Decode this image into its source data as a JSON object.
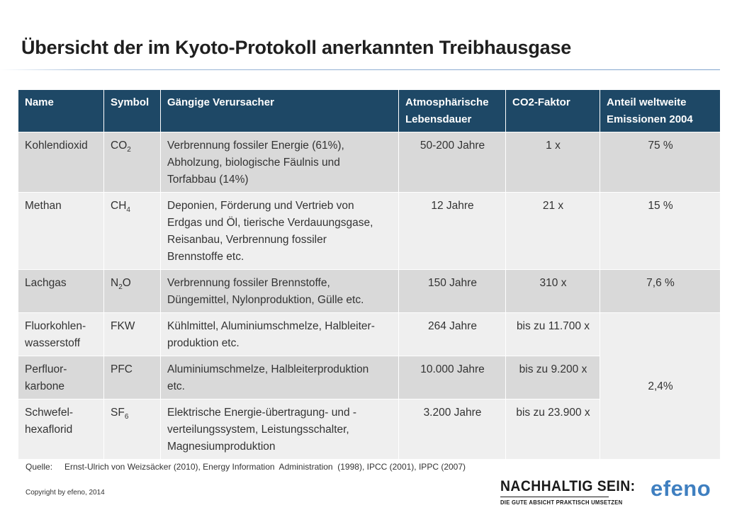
{
  "title": "Übersicht der im Kyoto-Protokoll anerkannten Treibhausgase",
  "table": {
    "headers": {
      "name": "Name",
      "symbol": "Symbol",
      "sources": "Gängige Verursacher",
      "lifetime_line1": "Atmosphärische",
      "lifetime_line2": "Lebensdauer",
      "co2_factor": "CO2-Faktor",
      "share_line1": "Anteil weltweite",
      "share_line2": "Emissionen 2004"
    },
    "rows": [
      {
        "name_line1": "Kohlendioxid",
        "name_line2": "",
        "symbol_main": "CO",
        "symbol_sub": "2",
        "symbol_tail": "",
        "sources_lines": [
          "Verbrennung fossiler Energie (61%),",
          "Abholzung, biologische Fäulnis und",
          "Torfabbau (14%)"
        ],
        "lifetime": "50-200 Jahre",
        "co2_factor": "1 x",
        "share": "75 %"
      },
      {
        "name_line1": "Methan",
        "name_line2": "",
        "symbol_main": "CH",
        "symbol_sub": "4",
        "symbol_tail": "",
        "sources_lines": [
          "Deponien, Förderung und Vertrieb von",
          "Erdgas und Öl, tierische Verdauungsgase,",
          "Reisanbau, Verbrennung fossiler",
          "Brennstoffe etc."
        ],
        "lifetime": "12 Jahre",
        "co2_factor": "21 x",
        "share": "15 %"
      },
      {
        "name_line1": "Lachgas",
        "name_line2": "",
        "symbol_main": "N",
        "symbol_sub": "2",
        "symbol_tail": "O",
        "sources_lines": [
          "Verbrennung fossiler Brennstoffe,",
          "Düngemittel, Nylonproduktion, Gülle etc."
        ],
        "lifetime": "150 Jahre",
        "co2_factor": "310 x",
        "share": "7,6 %"
      },
      {
        "name_line1": "Fluorkohlen-",
        "name_line2": "wasserstoff",
        "symbol_main": "FKW",
        "symbol_sub": "",
        "symbol_tail": "",
        "sources_lines": [
          "Kühlmittel, Aluminiumschmelze, Halbleiter-",
          "produktion etc."
        ],
        "lifetime": "264 Jahre",
        "co2_factor": "bis zu 11.700 x"
      },
      {
        "name_line1": "Perfluor-",
        "name_line2": "karbone",
        "symbol_main": "PFC",
        "symbol_sub": "",
        "symbol_tail": "",
        "sources_lines": [
          "Aluminiumschmelze, Halbleiterproduktion",
          "etc."
        ],
        "lifetime": "10.000 Jahre",
        "co2_factor": "bis zu 9.200 x"
      },
      {
        "name_line1": "Schwefel-",
        "name_line2": "hexaflorid",
        "symbol_main": "SF",
        "symbol_sub": "6",
        "symbol_tail": "",
        "sources_lines": [
          "Elektrische Energie-übertragung-  und -",
          "verteilungssystem, Leistungsschalter,",
          "Magnesiumproduktion"
        ],
        "lifetime": "3.200 Jahre",
        "co2_factor": "bis zu 23.900 x"
      }
    ],
    "merged_share": "2,4%"
  },
  "footer": {
    "source_label": "Quelle:",
    "source_text": "Ernst-Ulrich von Weizsäcker (2010), Energy Information  Administration  (1998), IPCC (2001), IPPC (2007)",
    "copyright": "Copyright by efeno, 2014"
  },
  "branding": {
    "headline": "NACHHALTIG SEIN:",
    "subline": "DIE GUTE ABSICHT PRAKTISCH UMSETZEN",
    "logo_text": "efeno",
    "logo_color": "#3f7fc0",
    "header_color": "#1e4866"
  }
}
